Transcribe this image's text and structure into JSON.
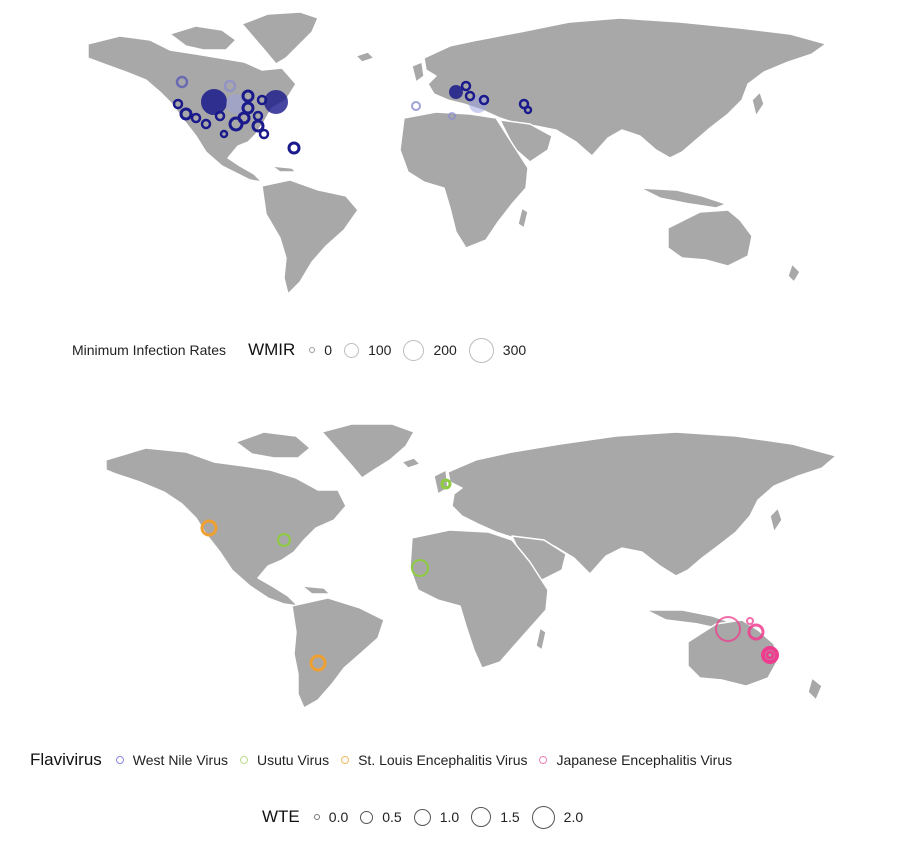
{
  "colors": {
    "land": "#a8a8a8",
    "border": "#ffffff",
    "west_nile": "#1a1a8c",
    "west_nile_light": "#9aa0e0",
    "usutu": "#8fcc40",
    "st_louis": "#f0a030",
    "japanese": "#ee3d8e"
  },
  "top_map": {
    "legend": {
      "caption": "Minimum Infection Rates",
      "title": "WMIR",
      "sizes": [
        "0",
        "100",
        "200",
        "300"
      ]
    }
  },
  "bottom_map": {
    "legend_virus": {
      "title": "Flavivirus",
      "items": [
        {
          "label": "West Nile Virus",
          "color": "#8888dd"
        },
        {
          "label": "Usutu Virus",
          "color": "#bcdb88"
        },
        {
          "label": "St. Louis Encephalitis Virus",
          "color": "#f3b75e"
        },
        {
          "label": "Japanese Encephalitis Virus",
          "color": "#ef7fb4"
        }
      ]
    },
    "legend_size": {
      "title": "WTE",
      "sizes": [
        "0.0",
        "0.5",
        "1.0",
        "1.5",
        "2.0"
      ]
    }
  }
}
